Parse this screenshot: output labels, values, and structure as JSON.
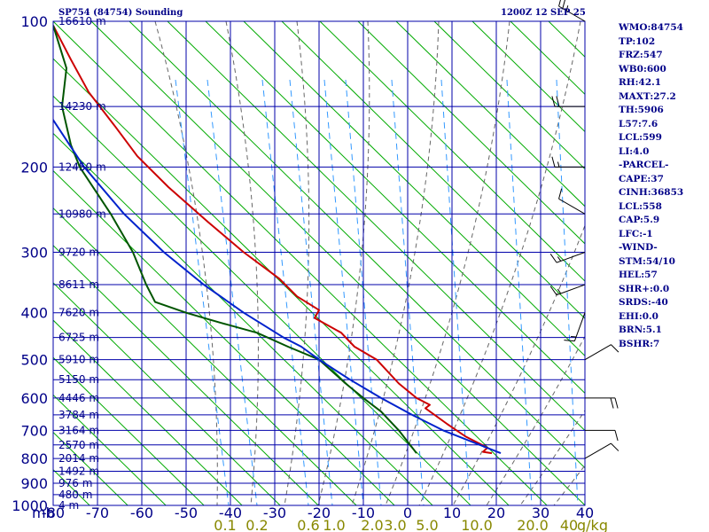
{
  "header": {
    "station": "SP754 (84754) Sounding",
    "time": "1200Z 12 SEP 25"
  },
  "stats": [
    "WMO:84754",
    "TP:102",
    "FRZ:547",
    "WB0:600",
    "RH:42.1",
    "MAXT:27.2",
    "TH:5906",
    "L57:7.6",
    "LCL:599",
    "LI:4.0",
    "-PARCEL-",
    "CAPE:37",
    "CINH:36853",
    "LCL:558",
    "CAP:5.9",
    "LFC:-1",
    "-WIND-",
    "STM:54/10",
    "HEL:57",
    "SHR+:0.0",
    "SRDS:-40",
    "EHI:0.0",
    "BRN:5.1",
    "BSHR:7"
  ],
  "colors": {
    "isobar": "#0000aa",
    "isotherm": "#0000aa",
    "dry_adiabat": "#00aa00",
    "moist_adiabat": "#666666",
    "mixing_ratio": "#3399ff",
    "temperature": "#cc0000",
    "dewpoint": "#005500",
    "parcel": "#0022cc",
    "axis_text": "#000088",
    "mixing_text": "#888800"
  },
  "chart_data": {
    "type": "line",
    "title": "SP754 (84754) Sounding",
    "subtitle": "1200Z 12 SEP 25",
    "y_unit_label": "mb",
    "x_unit_label": "g/kg",
    "pressure_ticks": [
      100,
      200,
      300,
      400,
      500,
      600,
      700,
      800,
      900,
      1000
    ],
    "temperature_ticks": [
      -80,
      -70,
      -60,
      -50,
      -40,
      -30,
      -20,
      -10,
      0,
      10,
      20,
      30,
      40
    ],
    "mixing_ratio_labels": [
      "0.1",
      "0.2",
      "0.6",
      "1.0",
      "2.0",
      "3.0",
      "5.0",
      "10.0",
      "20.0",
      "40"
    ],
    "height_labels": [
      {
        "p": 100,
        "text": "16610 m"
      },
      {
        "p": 150,
        "text": "14230 m"
      },
      {
        "p": 200,
        "text": "12450 m"
      },
      {
        "p": 250,
        "text": "10980 m"
      },
      {
        "p": 300,
        "text": "9720 m"
      },
      {
        "p": 350,
        "text": "8611 m"
      },
      {
        "p": 400,
        "text": "7620 m"
      },
      {
        "p": 450,
        "text": "6725 m"
      },
      {
        "p": 500,
        "text": "5910 m"
      },
      {
        "p": 550,
        "text": "5150 m"
      },
      {
        "p": 600,
        "text": "4446 m"
      },
      {
        "p": 650,
        "text": "3784 m"
      },
      {
        "p": 700,
        "text": "3164 m"
      },
      {
        "p": 750,
        "text": "2570 m"
      },
      {
        "p": 800,
        "text": "2014 m"
      },
      {
        "p": 850,
        "text": "1492 m"
      },
      {
        "p": 900,
        "text": "976 m"
      },
      {
        "p": 950,
        "text": "480 m"
      },
      {
        "p": 1000,
        "text": "4 m"
      }
    ],
    "series": [
      {
        "key": "temperature",
        "points": [
          [
            102,
            -80
          ],
          [
            120,
            -76
          ],
          [
            140,
            -72
          ],
          [
            165,
            -66
          ],
          [
            190,
            -61
          ],
          [
            220,
            -54
          ],
          [
            260,
            -45
          ],
          [
            300,
            -37
          ],
          [
            340,
            -29
          ],
          [
            370,
            -25
          ],
          [
            395,
            -20
          ],
          [
            410,
            -21
          ],
          [
            440,
            -15
          ],
          [
            470,
            -12
          ],
          [
            500,
            -7
          ],
          [
            560,
            -2
          ],
          [
            600,
            2
          ],
          [
            620,
            5
          ],
          [
            630,
            4
          ],
          [
            680,
            9
          ],
          [
            720,
            13
          ],
          [
            760,
            18
          ],
          [
            775,
            17
          ],
          [
            780,
            19
          ]
        ]
      },
      {
        "key": "dewpoint",
        "points": [
          [
            102,
            -80
          ],
          [
            125,
            -77
          ],
          [
            150,
            -78
          ],
          [
            180,
            -76
          ],
          [
            200,
            -74
          ],
          [
            250,
            -67
          ],
          [
            300,
            -62
          ],
          [
            350,
            -59
          ],
          [
            380,
            -57
          ],
          [
            400,
            -50
          ],
          [
            410,
            -46
          ],
          [
            420,
            -42
          ],
          [
            440,
            -34
          ],
          [
            470,
            -27
          ],
          [
            500,
            -20
          ],
          [
            560,
            -14
          ],
          [
            600,
            -10
          ],
          [
            640,
            -6
          ],
          [
            700,
            -2
          ],
          [
            780,
            2
          ]
        ]
      },
      {
        "key": "parcel",
        "points": [
          [
            150,
            -82
          ],
          [
            200,
            -73
          ],
          [
            250,
            -64
          ],
          [
            300,
            -55
          ],
          [
            350,
            -46
          ],
          [
            400,
            -37
          ],
          [
            450,
            -28
          ],
          [
            470,
            -24
          ],
          [
            500,
            -20
          ],
          [
            550,
            -13
          ],
          [
            600,
            -6
          ],
          [
            650,
            1
          ],
          [
            700,
            8
          ],
          [
            780,
            21
          ]
        ]
      }
    ],
    "wind_barbs": [
      {
        "p": 100,
        "dir": 300,
        "kt": 25
      },
      {
        "p": 150,
        "dir": 270,
        "kt": 20
      },
      {
        "p": 200,
        "dir": 270,
        "kt": 15
      },
      {
        "p": 250,
        "dir": 300,
        "kt": 10
      },
      {
        "p": 300,
        "dir": 250,
        "kt": 15
      },
      {
        "p": 350,
        "dir": 250,
        "kt": 15
      },
      {
        "p": 400,
        "dir": 200,
        "kt": 15
      },
      {
        "p": 500,
        "dir": 60,
        "kt": 10
      },
      {
        "p": 600,
        "dir": 90,
        "kt": 20
      },
      {
        "p": 700,
        "dir": 90,
        "kt": 10
      },
      {
        "p": 800,
        "dir": 60,
        "kt": 10
      }
    ]
  }
}
